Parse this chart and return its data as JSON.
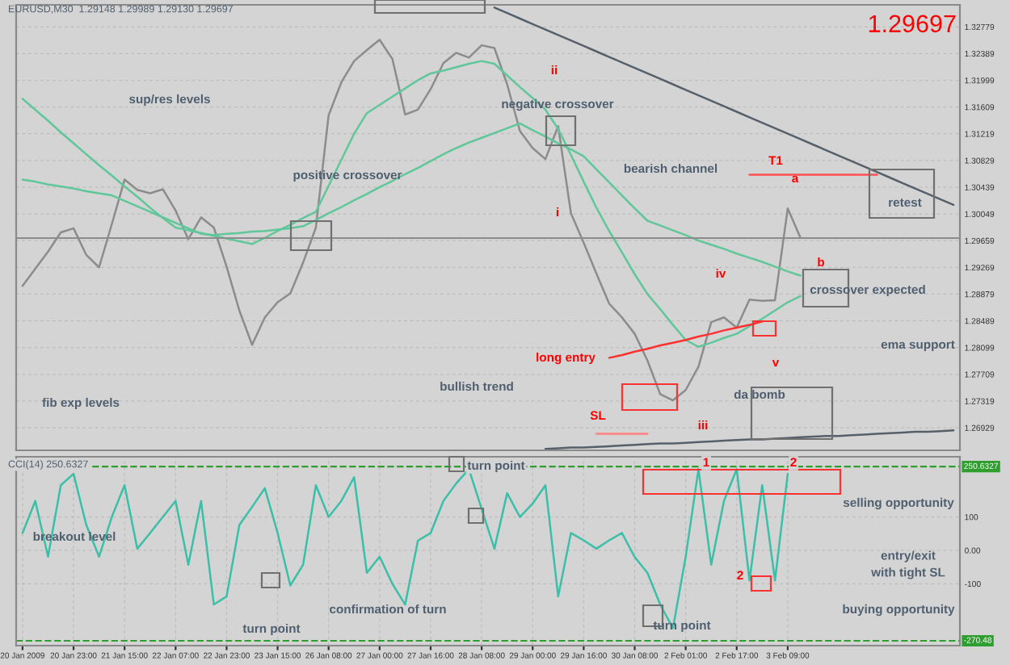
{
  "chart_data": [
    {
      "type": "line",
      "ylim": [
        1.266,
        1.331
      ],
      "yticks": [
        1.32779,
        1.32389,
        1.31999,
        1.31609,
        1.31219,
        1.30829,
        1.30439,
        1.30049,
        1.29659,
        1.29269,
        1.28879,
        1.28489,
        1.28099,
        1.27709,
        1.27319,
        1.26929
      ],
      "tick_labels": "y",
      "grid": true,
      "categories": [
        null,
        null,
        null,
        null,
        null,
        null,
        null,
        null,
        null,
        null,
        null,
        null,
        null,
        null,
        null,
        null,
        null,
        null,
        null,
        null,
        null,
        null,
        null,
        null,
        null,
        null,
        null,
        null,
        null,
        null,
        null,
        null,
        null,
        null,
        null,
        null,
        null,
        null,
        null,
        null,
        null,
        null,
        null,
        null,
        null,
        null,
        null,
        null,
        null,
        null,
        null,
        null,
        null,
        null,
        null,
        null,
        null,
        null,
        null,
        null,
        null,
        null,
        null,
        null,
        null,
        null,
        null,
        null,
        null,
        null,
        null,
        null,
        null,
        null
      ],
      "series": [
        {
          "color": "#8c8c8c",
          "values": [
            1.29,
            1.2925,
            1.295,
            1.2978,
            1.2984,
            1.2945,
            1.2927,
            1.299,
            1.3055,
            1.304,
            1.3035,
            1.3041,
            1.301,
            1.2968,
            1.3,
            1.2985,
            1.2928,
            1.2864,
            1.2814,
            1.2854,
            1.2876,
            1.2889,
            1.2934,
            1.2985,
            1.3149,
            1.3197,
            1.3228,
            1.3244,
            1.3259,
            1.3231,
            1.315,
            1.3157,
            1.3187,
            1.3225,
            1.324,
            1.3233,
            1.3251,
            1.3247,
            1.3194,
            1.3126,
            1.3101,
            1.3085,
            1.3133,
            1.3006,
            1.2963,
            1.2918,
            1.2874,
            1.2854,
            1.283,
            1.2791,
            1.2742,
            1.2733,
            1.2748,
            1.2782,
            1.2847,
            1.2854,
            1.2839,
            1.288,
            1.2878,
            1.2879,
            1.3013,
            1.297,
            null,
            null,
            null,
            null,
            null,
            null,
            null,
            null,
            null,
            null,
            null,
            null
          ]
        },
        {
          "color": "#5fc79a",
          "values": [
            1.3173,
            1.3157,
            1.3141,
            1.3124,
            1.3108,
            1.3092,
            1.3076,
            1.3061,
            1.3045,
            1.303,
            1.3014,
            1.2999,
            1.2985,
            1.2981,
            1.2977,
            1.2973,
            1.2969,
            1.2965,
            1.2961,
            1.297,
            1.298,
            1.2989,
            1.2999,
            1.3008,
            1.3046,
            1.3084,
            1.3122,
            1.3152,
            1.3164,
            1.3176,
            1.3188,
            1.32,
            1.321,
            1.3214,
            1.3219,
            1.3224,
            1.3228,
            1.3224,
            1.3207,
            1.319,
            1.3174,
            1.3157,
            1.3129,
            1.3091,
            1.3052,
            1.3014,
            1.298,
            1.2949,
            1.2917,
            1.2888,
            1.2866,
            1.2843,
            1.2821,
            1.2811,
            1.2817,
            1.2824,
            1.283,
            1.2841,
            1.2852,
            1.2864,
            1.2876,
            1.2885,
            null,
            null,
            null,
            null,
            null,
            null,
            null,
            null,
            null,
            null,
            null,
            null
          ]
        },
        {
          "color": "#5fc79a",
          "values": [
            1.3055,
            1.3052,
            1.3048,
            1.3045,
            1.3042,
            1.3038,
            1.3035,
            1.3032,
            1.3024,
            1.3016,
            1.3008,
            1.3,
            1.2992,
            1.2984,
            1.2976,
            1.2974,
            1.2976,
            1.2977,
            1.2979,
            1.298,
            1.2982,
            1.2984,
            1.2987,
            1.2996,
            1.3006,
            1.3015,
            1.3025,
            1.3034,
            1.3044,
            1.3053,
            1.3063,
            1.3072,
            1.3082,
            1.3092,
            1.3101,
            1.3109,
            1.3116,
            1.3123,
            1.313,
            1.3137,
            1.3127,
            1.3118,
            1.3108,
            1.3099,
            1.3089,
            1.307,
            1.3051,
            1.3032,
            1.3013,
            1.2995,
            1.2988,
            1.2981,
            1.2974,
            1.2966,
            1.296,
            1.2954,
            1.2947,
            1.2941,
            1.2935,
            1.2928,
            1.2921,
            1.2915,
            null,
            null,
            null,
            null,
            null,
            null,
            null,
            null,
            null,
            null,
            null,
            null
          ]
        },
        {
          "color": "#56606a",
          "values": [
            null,
            null,
            null,
            null,
            null,
            null,
            null,
            null,
            null,
            null,
            null,
            null,
            null,
            null,
            null,
            null,
            null,
            null,
            null,
            null,
            null,
            null,
            null,
            null,
            null,
            null,
            null,
            null,
            null,
            null,
            null,
            null,
            null,
            null,
            null,
            null,
            null,
            1.3306,
            1.3298,
            1.329,
            1.3282,
            1.3274,
            1.3266,
            1.3258,
            1.325,
            1.3242,
            1.3234,
            1.3226,
            1.3218,
            1.321,
            1.3202,
            1.3194,
            1.3186,
            1.3178,
            1.317,
            1.3162,
            1.3154,
            1.3146,
            1.3138,
            1.313,
            1.3122,
            1.3114,
            1.3106,
            1.3098,
            1.309,
            1.3082,
            1.3074,
            1.3066,
            1.3058,
            1.305,
            1.3042,
            1.3034,
            1.3026,
            1.3018
          ]
        },
        {
          "color": "#56606a",
          "values": [
            null,
            null,
            null,
            null,
            null,
            null,
            null,
            null,
            null,
            null,
            null,
            null,
            null,
            null,
            null,
            null,
            null,
            null,
            null,
            null,
            null,
            null,
            null,
            null,
            null,
            null,
            null,
            null,
            null,
            null,
            null,
            null,
            null,
            null,
            null,
            null,
            null,
            null,
            null,
            null,
            null,
            1.2662,
            1.2663,
            1.2664,
            1.2664,
            1.2665,
            1.2666,
            1.2667,
            1.2668,
            1.2669,
            1.267,
            1.267,
            1.2671,
            1.2672,
            1.2673,
            1.2674,
            1.2675,
            1.2676,
            1.2676,
            1.2677,
            1.2678,
            1.2679,
            1.268,
            1.2681,
            1.2681,
            1.2682,
            1.2683,
            1.2684,
            1.2685,
            1.2686,
            1.2687,
            1.2687,
            1.2688,
            1.2689
          ]
        },
        {
          "color": "#ff5050",
          "values": [
            null,
            null,
            null,
            null,
            null,
            null,
            null,
            null,
            null,
            null,
            null,
            null,
            null,
            null,
            null,
            null,
            null,
            null,
            null,
            null,
            null,
            null,
            null,
            null,
            null,
            null,
            null,
            null,
            null,
            null,
            null,
            null,
            null,
            null,
            null,
            null,
            null,
            null,
            null,
            null,
            null,
            null,
            null,
            null,
            null,
            null,
            null,
            null,
            null,
            null,
            null,
            null,
            null,
            null,
            null,
            null,
            null,
            1.3062,
            1.3062,
            1.3062,
            1.3062,
            1.3062,
            1.3062,
            1.3062,
            1.3062,
            1.3062,
            1.3062,
            1.3062,
            null,
            null,
            null,
            null,
            null,
            null
          ]
        },
        {
          "color": "#ff8080",
          "values": [
            null,
            null,
            null,
            null,
            null,
            null,
            null,
            null,
            null,
            null,
            null,
            null,
            null,
            null,
            null,
            null,
            null,
            null,
            null,
            null,
            null,
            null,
            null,
            null,
            null,
            null,
            null,
            null,
            null,
            null,
            null,
            null,
            null,
            null,
            null,
            null,
            null,
            null,
            null,
            null,
            null,
            null,
            null,
            null,
            null,
            1.2684,
            1.2684,
            1.2684,
            1.2684,
            1.2684,
            null,
            null,
            null,
            null,
            null,
            null,
            null,
            null,
            null,
            null,
            null,
            null,
            null,
            null,
            null,
            null,
            null,
            null,
            null,
            null,
            null,
            null,
            null,
            null
          ]
        },
        {
          "color": "#ff3030",
          "values": [
            null,
            null,
            null,
            null,
            null,
            null,
            null,
            null,
            null,
            null,
            null,
            null,
            null,
            null,
            null,
            null,
            null,
            null,
            null,
            null,
            null,
            null,
            null,
            null,
            null,
            null,
            null,
            null,
            null,
            null,
            null,
            null,
            null,
            null,
            null,
            null,
            null,
            null,
            null,
            null,
            null,
            null,
            null,
            null,
            null,
            null,
            1.2795,
            1.2799,
            1.2804,
            1.2808,
            1.2813,
            1.2817,
            1.2821,
            1.2826,
            1.283,
            1.2835,
            1.2839,
            1.2843,
            1.2848,
            null,
            null,
            null,
            null,
            null,
            null,
            null,
            null,
            null,
            null,
            null,
            null,
            null,
            null,
            null
          ]
        }
      ],
      "ref_lines": [
        {
          "axis": "y",
          "value": 1.29697,
          "color": "#8c8c8c"
        }
      ],
      "annotations": [
        "EURUSD,M30  1.29148 1.29989 1.29130 1.29697",
        "1.29697",
        "sup/res levels",
        "positive crossover",
        "ii",
        "negative crossover",
        "bearish channel",
        "T1",
        "a",
        "retest",
        "i",
        "b",
        "crossover expected",
        "iv",
        "long entry",
        "ema support",
        "v",
        "SL",
        "da bomb",
        "iii",
        "bullish trend",
        "fib exp levels"
      ]
    },
    {
      "type": "line",
      "ylim": [
        -285,
        280
      ],
      "yticks": [
        100,
        {
          "value": 0,
          "label": "0.00"
        },
        -100
      ],
      "grid": true,
      "categories": [
        "20 Jan 2009",
        null,
        null,
        null,
        "20 Jan 23:00",
        null,
        null,
        null,
        "21 Jan 15:00",
        null,
        null,
        null,
        "22 Jan 07:00",
        null,
        null,
        null,
        "22 Jan 23:00",
        null,
        null,
        null,
        "23 Jan 15:00",
        null,
        null,
        null,
        "26 Jan 08:00",
        null,
        null,
        null,
        "27 Jan 00:00",
        null,
        null,
        null,
        "27 Jan 16:00",
        null,
        null,
        null,
        "28 Jan 08:00",
        null,
        null,
        null,
        "29 Jan 00:00",
        null,
        null,
        null,
        "29 Jan 16:00",
        null,
        null,
        null,
        "30 Jan 08:00",
        null,
        null,
        null,
        "2 Feb 01:00",
        null,
        null,
        null,
        "2 Feb 17:00",
        null,
        null,
        null,
        "3 Feb 09:00",
        null,
        null,
        null,
        null,
        null,
        null,
        null,
        null,
        null,
        null,
        null,
        null,
        null
      ],
      "series": [
        {
          "color": "#3cbfa8",
          "values": [
            52,
            148,
            -19,
            195,
            229,
            76,
            -19,
            100,
            195,
            5,
            52,
            100,
            148,
            -43,
            148,
            -162,
            -138,
            76,
            130,
            186,
            52,
            -105,
            -43,
            195,
            100,
            148,
            219,
            -67,
            -19,
            -100,
            -162,
            29,
            52,
            148,
            200,
            243,
            124,
            5,
            171,
            100,
            140,
            195,
            -138,
            52,
            30,
            5,
            30,
            52,
            -20,
            -67,
            -162,
            -233,
            -19,
            243,
            -43,
            148,
            243,
            -90,
            195,
            -90,
            229,
            null,
            null,
            null,
            null,
            null,
            null,
            null,
            null,
            null,
            null,
            null,
            null,
            null
          ]
        }
      ],
      "ref_lines": [
        {
          "axis": "y",
          "value": 250.6327,
          "label": "250.6327",
          "color": "#2e9e2e",
          "line_style": "dashed"
        },
        {
          "axis": "y",
          "value": -270.48,
          "label": "-270.48",
          "color": "#2e9e2e",
          "line_style": "dashed"
        }
      ],
      "annotations": [
        "CCI(14) 250.6327",
        "breakout level",
        "turn point",
        "turn point",
        "confirmation of turn",
        "1",
        "2",
        "selling opportunity",
        "entry/exit\nwith tight SL",
        "2",
        "buying opportunity",
        "turn point"
      ]
    }
  ]
}
